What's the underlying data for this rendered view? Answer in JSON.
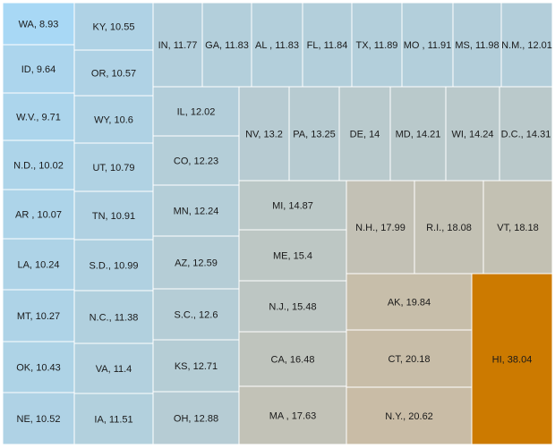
{
  "chart_data": {
    "type": "treemap",
    "title": "",
    "color_scale": {
      "low": "#a8d8f5",
      "mid": "#c9bca6",
      "high": "#cc7a00",
      "min": 8.93,
      "max": 38.04
    },
    "cells": [
      {
        "name": "WA",
        "value": 8.93,
        "label": "WA, 8.93"
      },
      {
        "name": "ID",
        "value": 9.64,
        "label": "ID, 9.64"
      },
      {
        "name": "W.V.",
        "value": 9.71,
        "label": "W.V., 9.71"
      },
      {
        "name": "N.D.",
        "value": 10.02,
        "label": "N.D., 10.02"
      },
      {
        "name": "AR",
        "value": 10.07,
        "label": "AR , 10.07"
      },
      {
        "name": "LA",
        "value": 10.24,
        "label": "LA, 10.24"
      },
      {
        "name": "MT",
        "value": 10.27,
        "label": "MT, 10.27"
      },
      {
        "name": "OK",
        "value": 10.43,
        "label": "OK, 10.43"
      },
      {
        "name": "NE",
        "value": 10.52,
        "label": "NE, 10.52"
      },
      {
        "name": "KY",
        "value": 10.55,
        "label": "KY, 10.55"
      },
      {
        "name": "OR",
        "value": 10.57,
        "label": "OR, 10.57"
      },
      {
        "name": "WY",
        "value": 10.6,
        "label": "WY, 10.6"
      },
      {
        "name": "UT",
        "value": 10.79,
        "label": "UT, 10.79"
      },
      {
        "name": "TN",
        "value": 10.91,
        "label": "TN, 10.91"
      },
      {
        "name": "S.D.",
        "value": 10.99,
        "label": "S.D., 10.99"
      },
      {
        "name": "N.C.",
        "value": 11.38,
        "label": "N.C., 11.38"
      },
      {
        "name": "VA",
        "value": 11.4,
        "label": "VA, 11.4"
      },
      {
        "name": "IA",
        "value": 11.51,
        "label": "IA, 11.51"
      },
      {
        "name": "IN",
        "value": 11.77,
        "label": "IN, 11.77"
      },
      {
        "name": "GA",
        "value": 11.83,
        "label": "GA, 11.83"
      },
      {
        "name": "AL",
        "value": 11.83,
        "label": "AL , 11.83"
      },
      {
        "name": "FL",
        "value": 11.84,
        "label": "FL, 11.84"
      },
      {
        "name": "TX",
        "value": 11.89,
        "label": "TX, 11.89"
      },
      {
        "name": "MO",
        "value": 11.91,
        "label": "MO , 11.91"
      },
      {
        "name": "MS",
        "value": 11.98,
        "label": "MS, 11.98"
      },
      {
        "name": "N.M.",
        "value": 12.01,
        "label": "N.M., 12.01"
      },
      {
        "name": "IL",
        "value": 12.02,
        "label": "IL, 12.02"
      },
      {
        "name": "CO",
        "value": 12.23,
        "label": "CO, 12.23"
      },
      {
        "name": "MN",
        "value": 12.24,
        "label": "MN, 12.24"
      },
      {
        "name": "AZ",
        "value": 12.59,
        "label": "AZ, 12.59"
      },
      {
        "name": "S.C.",
        "value": 12.6,
        "label": "S.C., 12.6"
      },
      {
        "name": "KS",
        "value": 12.71,
        "label": "KS, 12.71"
      },
      {
        "name": "OH",
        "value": 12.88,
        "label": "OH, 12.88"
      },
      {
        "name": "NV",
        "value": 13.2,
        "label": "NV, 13.2"
      },
      {
        "name": "PA",
        "value": 13.25,
        "label": "PA, 13.25"
      },
      {
        "name": "DE",
        "value": 14,
        "label": "DE, 14"
      },
      {
        "name": "MD",
        "value": 14.21,
        "label": "MD, 14.21"
      },
      {
        "name": "WI",
        "value": 14.24,
        "label": "WI, 14.24"
      },
      {
        "name": "D.C.",
        "value": 14.31,
        "label": "D.C., 14.31"
      },
      {
        "name": "MI",
        "value": 14.87,
        "label": "MI, 14.87"
      },
      {
        "name": "ME",
        "value": 15.4,
        "label": "ME, 15.4"
      },
      {
        "name": "N.J.",
        "value": 15.48,
        "label": "N.J., 15.48"
      },
      {
        "name": "CA",
        "value": 16.48,
        "label": "CA, 16.48"
      },
      {
        "name": "MA",
        "value": 17.63,
        "label": "MA , 17.63"
      },
      {
        "name": "N.H.",
        "value": 17.99,
        "label": "N.H., 17.99"
      },
      {
        "name": "R.I.",
        "value": 18.08,
        "label": "R.I., 18.08"
      },
      {
        "name": "VT",
        "value": 18.18,
        "label": "VT, 18.18"
      },
      {
        "name": "AK",
        "value": 19.84,
        "label": "AK, 19.84"
      },
      {
        "name": "CT",
        "value": 20.18,
        "label": "CT, 20.18"
      },
      {
        "name": "N.Y.",
        "value": 20.62,
        "label": "N.Y., 20.62"
      },
      {
        "name": "HI",
        "value": 38.04,
        "label": "HI, 38.04"
      }
    ]
  }
}
